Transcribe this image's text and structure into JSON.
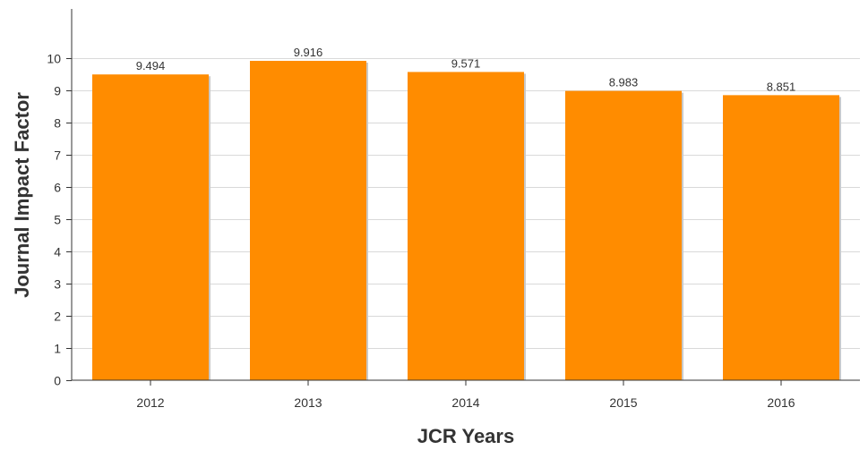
{
  "chart_data": {
    "type": "bar",
    "categories": [
      "2012",
      "2013",
      "2014",
      "2015",
      "2016"
    ],
    "values": [
      9.494,
      9.916,
      9.571,
      8.983,
      8.851
    ],
    "data_labels": [
      "9.494",
      "9.916",
      "9.571",
      "8.983",
      "8.851"
    ],
    "title": "",
    "xlabel": "JCR Years",
    "ylabel": "Journal Impact Factor",
    "ylim": [
      0,
      11
    ],
    "yticks": [
      0,
      1,
      2,
      3,
      4,
      5,
      6,
      7,
      8,
      9,
      10
    ],
    "grid": true,
    "legend": "none",
    "bar_color": "#ff8c00",
    "grid_color": "#d9d9d9"
  }
}
